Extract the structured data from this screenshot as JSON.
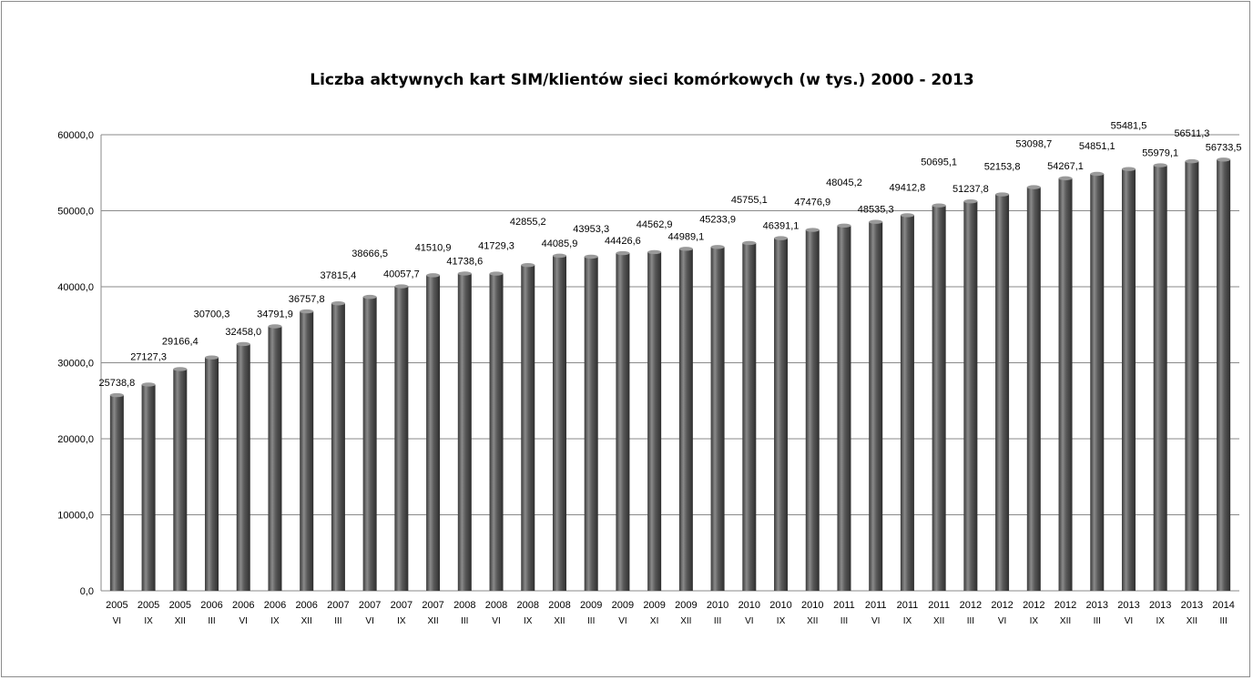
{
  "chart_data": {
    "type": "bar",
    "title": "Liczba aktywnych kart SIM/klientów sieci komórkowych  (w tys.) 2000 - 2013",
    "xlabel": "",
    "ylabel": "",
    "ylim": [
      0,
      60000
    ],
    "yticks": [
      "0,0",
      "10000,0",
      "20000,0",
      "30000,0",
      "40000,0",
      "50000,0",
      "60000,0"
    ],
    "grid": true,
    "legend": "none",
    "bar_color": "#555555",
    "categories": [
      {
        "year": "2005",
        "period": "VI"
      },
      {
        "year": "2005",
        "period": "IX"
      },
      {
        "year": "2005",
        "period": "XII"
      },
      {
        "year": "2006",
        "period": "III"
      },
      {
        "year": "2006",
        "period": "VI"
      },
      {
        "year": "2006",
        "period": "IX"
      },
      {
        "year": "2006",
        "period": "XII"
      },
      {
        "year": "2007",
        "period": "III"
      },
      {
        "year": "2007",
        "period": "VI"
      },
      {
        "year": "2007",
        "period": "IX"
      },
      {
        "year": "2007",
        "period": "XII"
      },
      {
        "year": "2008",
        "period": "III"
      },
      {
        "year": "2008",
        "period": "VI"
      },
      {
        "year": "2008",
        "period": "IX"
      },
      {
        "year": "2008",
        "period": "XII"
      },
      {
        "year": "2009",
        "period": "III"
      },
      {
        "year": "2009",
        "period": "VI"
      },
      {
        "year": "2009",
        "period": "XI"
      },
      {
        "year": "2009",
        "period": "XII"
      },
      {
        "year": "2010",
        "period": "III"
      },
      {
        "year": "2010",
        "period": "VI"
      },
      {
        "year": "2010",
        "period": "IX"
      },
      {
        "year": "2010",
        "period": "XII"
      },
      {
        "year": "2011",
        "period": "III"
      },
      {
        "year": "2011",
        "period": "VI"
      },
      {
        "year": "2011",
        "period": "IX"
      },
      {
        "year": "2011",
        "period": "XII"
      },
      {
        "year": "2012",
        "period": "III"
      },
      {
        "year": "2012",
        "period": "VI"
      },
      {
        "year": "2012",
        "period": "IX"
      },
      {
        "year": "2012",
        "period": "XII"
      },
      {
        "year": "2013",
        "period": "III"
      },
      {
        "year": "2013",
        "period": "VI"
      },
      {
        "year": "2013",
        "period": "IX"
      },
      {
        "year": "2013",
        "period": "XII"
      },
      {
        "year": "2014",
        "period": "III"
      }
    ],
    "values": [
      25738.8,
      27127.3,
      29166.4,
      30700.3,
      32458.0,
      34791.9,
      36757.8,
      37815.4,
      38666.5,
      40057.7,
      41510.9,
      41738.6,
      41729.3,
      42855.2,
      44085.9,
      43953.3,
      44426.6,
      44562.9,
      44989.1,
      45233.9,
      45755.1,
      46391.1,
      47476.9,
      48045.2,
      48535.3,
      49412.8,
      50695.1,
      51237.8,
      52153.8,
      53098.7,
      54267.1,
      54851.1,
      55481.5,
      55979.1,
      56511.3,
      56733.5
    ],
    "data_labels": [
      "25738,8",
      "27127,3",
      "29166,4",
      "30700,3",
      "32458,0",
      "34791,9",
      "36757,8",
      "37815,4",
      "38666,5",
      "40057,7",
      "41510,9",
      "41738,6",
      "41729,3",
      "42855,2",
      "44085,9",
      "43953,3",
      "44426,6",
      "44562,9",
      "44989,1",
      "45233,9",
      "45755,1",
      "46391,1",
      "47476,9",
      "48045,2",
      "48535,3",
      "49412,8",
      "50695,1",
      "51237,8",
      "52153,8",
      "53098,7",
      "54267,1",
      "54851,1",
      "55481,5",
      "55979,1",
      "56511,3",
      "56733,5"
    ]
  }
}
